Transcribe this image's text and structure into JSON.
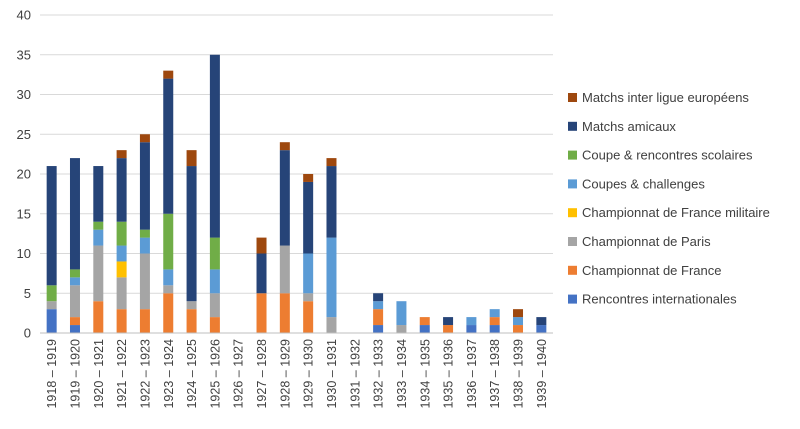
{
  "chart_data": {
    "type": "bar",
    "stacked": true,
    "title": "",
    "xlabel": "",
    "ylabel": "",
    "ylim": [
      0,
      40
    ],
    "yticks": [
      0,
      5,
      10,
      15,
      20,
      25,
      30,
      35,
      40
    ],
    "grid": true,
    "legend_position": "right",
    "categories": [
      "1918 – 1919",
      "1919 – 1920",
      "1920 – 1921",
      "1921 – 1922",
      "1922 – 1923",
      "1923 – 1924",
      "1924 – 1925",
      "1925 – 1926",
      "1926 – 1927",
      "1927 – 1928",
      "1928 – 1929",
      "1929 – 1930",
      "1930 – 1931",
      "1931 – 1932",
      "1932 – 1933",
      "1933 – 1934",
      "1934 – 1935",
      "1935 – 1936",
      "1936 – 1937",
      "1937 – 1938",
      "1938 – 1939",
      "1939 – 1940"
    ],
    "series": [
      {
        "name": "Rencontres internationales",
        "color": "#4472c4",
        "values": [
          3,
          1,
          0,
          0,
          0,
          0,
          0,
          0,
          0,
          0,
          0,
          0,
          0,
          0,
          1,
          0,
          1,
          0,
          1,
          1,
          0,
          1
        ]
      },
      {
        "name": "Championnat de France",
        "color": "#ed7d31",
        "values": [
          0,
          1,
          4,
          3,
          3,
          5,
          3,
          2,
          0,
          5,
          5,
          4,
          0,
          0,
          2,
          0,
          1,
          1,
          0,
          1,
          1,
          0
        ]
      },
      {
        "name": "Championnat de Paris",
        "color": "#a5a5a5",
        "values": [
          1,
          4,
          7,
          4,
          7,
          1,
          1,
          3,
          0,
          0,
          6,
          1,
          2,
          0,
          0,
          1,
          0,
          0,
          0,
          0,
          0,
          0
        ]
      },
      {
        "name": "Championnat de France militaire",
        "color": "#ffc000",
        "values": [
          0,
          0,
          0,
          2,
          0,
          0,
          0,
          0,
          0,
          0,
          0,
          0,
          0,
          0,
          0,
          0,
          0,
          0,
          0,
          0,
          0,
          0
        ]
      },
      {
        "name": "Coupes & challenges",
        "color": "#5b9bd5",
        "values": [
          0,
          1,
          2,
          2,
          2,
          2,
          0,
          3,
          0,
          0,
          0,
          5,
          10,
          0,
          1,
          3,
          0,
          0,
          1,
          1,
          1,
          0
        ]
      },
      {
        "name": "Coupe & rencontres scolaires",
        "color": "#70ad47",
        "values": [
          2,
          1,
          1,
          3,
          1,
          7,
          0,
          4,
          0,
          0,
          0,
          0,
          0,
          0,
          0,
          0,
          0,
          0,
          0,
          0,
          0,
          0
        ]
      },
      {
        "name": "Matchs amicaux",
        "color": "#264478",
        "values": [
          15,
          14,
          7,
          8,
          11,
          17,
          17,
          23,
          0,
          5,
          12,
          9,
          9,
          0,
          1,
          0,
          0,
          1,
          0,
          0,
          0,
          1
        ]
      },
      {
        "name": "Matchs inter ligue européens",
        "color": "#9e480e",
        "values": [
          0,
          0,
          0,
          1,
          1,
          1,
          2,
          0,
          0,
          2,
          1,
          1,
          1,
          0,
          0,
          0,
          0,
          0,
          0,
          0,
          1,
          0
        ]
      }
    ]
  }
}
